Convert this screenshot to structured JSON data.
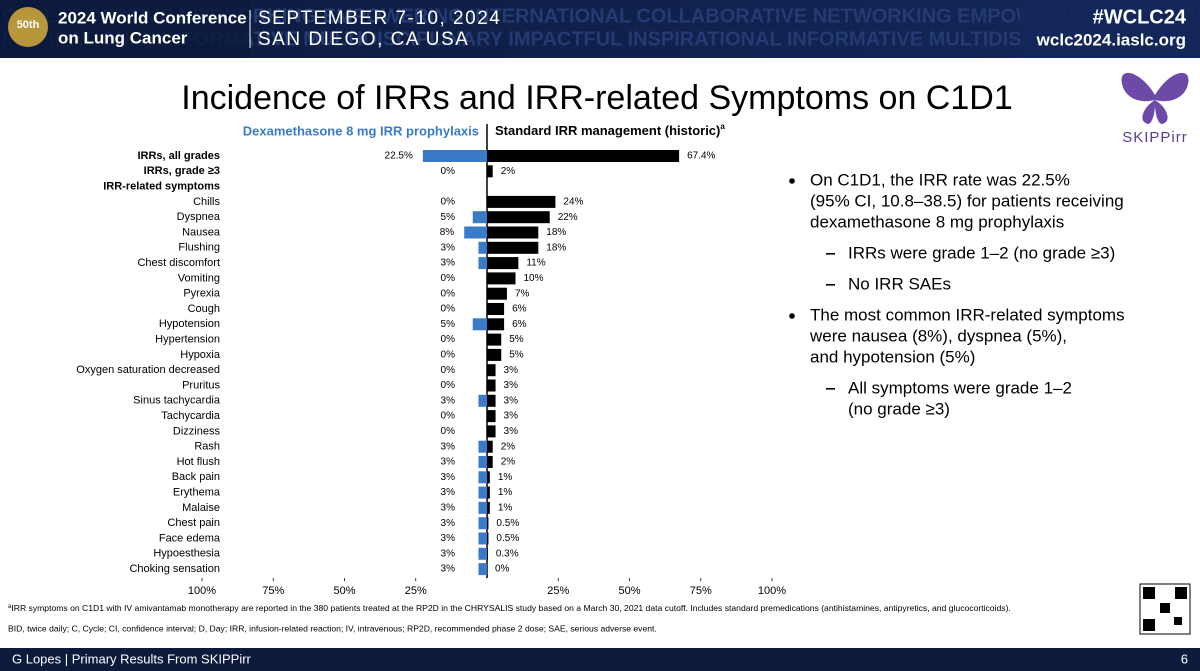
{
  "header": {
    "conference_lines": [
      "2024 World Conference",
      "on Lung Cancer"
    ],
    "dates": "SEPTEMBER 7-10, 2024",
    "location": "SAN DIEGO, CA USA",
    "hashtag": "#WCLC24",
    "url": "wclc2024.iaslc.org",
    "background_words": [
      "COLLABORATIVE NETWORKING EMPOWERING INTERNATIONAL COLLABORATIVE NETWORKING EMPOWERING INNOVATIVE",
      "INSPIRATIONAL INFORMATIVE MULTIDISCIPLINARY IMPACTFUL INSPIRATIONAL INFORMATIVE MULTIDISCIPLINARY"
    ],
    "logo_text": "50th"
  },
  "logo": "SKIPPirr",
  "chart_data": {
    "type": "butterfly_bar",
    "title": "Incidence of IRRs and IRR-related Symptoms on C1D1",
    "series_superscript": "a",
    "categories": [
      "IRRs, all grades",
      "IRRs, grade ≥3",
      "IRR-related symptoms",
      "Chills",
      "Dyspnea",
      "Nausea",
      "Flushing",
      "Chest discomfort",
      "Vomiting",
      "Pyrexia",
      "Cough",
      "Hypotension",
      "Hypertension",
      "Hypoxia",
      "Oxygen saturation decreased",
      "Pruritus",
      "Sinus tachycardia",
      "Tachycardia",
      "Dizziness",
      "Rash",
      "Hot flush",
      "Back pain",
      "Erythema",
      "Malaise",
      "Chest pain",
      "Face edema",
      "Hypoesthesia",
      "Choking sensation"
    ],
    "series": [
      {
        "name": "Dexamethasone 8 mg IRR prophylaxis",
        "color": "#3a7bc8",
        "values": [
          22.5,
          0,
          null,
          0,
          5,
          8,
          3,
          3,
          0,
          0,
          0,
          5,
          0,
          0,
          0,
          0,
          3,
          0,
          0,
          3,
          3,
          3,
          3,
          3,
          3,
          3,
          3,
          3
        ],
        "value_labels": [
          "22.5%",
          "0%",
          null,
          "0%",
          "5%",
          "8%",
          "3%",
          "3%",
          "0%",
          "0%",
          "0%",
          "5%",
          "0%",
          "0%",
          "0%",
          "0%",
          "3%",
          "0%",
          "0%",
          "3%",
          "3%",
          "3%",
          "3%",
          "3%",
          "3%",
          "3%",
          "3%",
          "3%"
        ]
      },
      {
        "name": "Standard IRR management (historic)",
        "color": "#000000",
        "values": [
          67.4,
          2,
          null,
          24,
          22,
          18,
          18,
          11,
          10,
          7,
          6,
          6,
          5,
          5,
          3,
          3,
          3,
          3,
          3,
          2,
          2,
          1,
          1,
          1,
          0.5,
          0.5,
          0.3,
          0
        ],
        "value_labels": [
          "67.4%",
          "2%",
          null,
          "24%",
          "22%",
          "18%",
          "18%",
          "11%",
          "10%",
          "7%",
          "6%",
          "6%",
          "5%",
          "5%",
          "3%",
          "3%",
          "3%",
          "3%",
          "3%",
          "2%",
          "2%",
          "1%",
          "1%",
          "1%",
          "0.5%",
          "0.5%",
          "0.3%",
          "0%"
        ]
      }
    ],
    "xlim": [
      -100,
      100
    ],
    "xticks": [
      {
        "value": -100,
        "label": "100%"
      },
      {
        "value": -75,
        "label": "75%"
      },
      {
        "value": -50,
        "label": "50%"
      },
      {
        "value": -25,
        "label": "25%"
      },
      {
        "value": 25,
        "label": "25%"
      },
      {
        "value": 50,
        "label": "50%"
      },
      {
        "value": 75,
        "label": "75%"
      },
      {
        "value": 100,
        "label": "100%"
      }
    ]
  },
  "bullets": [
    {
      "lines": [
        "On C1D1, the IRR rate was 22.5%",
        "(95% CI, 10.8–38.5) for patients receiving",
        "dexamethasone 8 mg prophylaxis"
      ],
      "sub": [
        [
          "IRRs were grade 1–2 (no grade ≥3)"
        ],
        [
          "No IRR SAEs"
        ]
      ]
    },
    {
      "lines": [
        "The most common IRR-related symptoms",
        "were nausea (8%), dyspnea (5%),",
        "and hypotension (5%)"
      ],
      "sub": [
        [
          "All symptoms were grade 1–2",
          "(no grade ≥3)"
        ]
      ]
    }
  ],
  "footnotes": {
    "superscript": "a",
    "note": "IRR symptoms on C1D1 with IV amivantamab monotherapy are reported in the 380 patients treated at the RP2D in the CHRYSALIS study based on a March 30, 2021 data cutoff. Includes standard premedications (antihistamines, antipyretics, and glucocorticoids).",
    "abbreviations": "BID, twice daily; C, Cycle; CI, confidence interval; D, Day; IRR, infusion-related reaction; IV, intravenous; RP2D, recommended phase 2 dose; SAE, serious adverse event."
  },
  "footer": {
    "presenter": "G Lopes | Primary Results From SKIPPirr",
    "page": "6"
  }
}
